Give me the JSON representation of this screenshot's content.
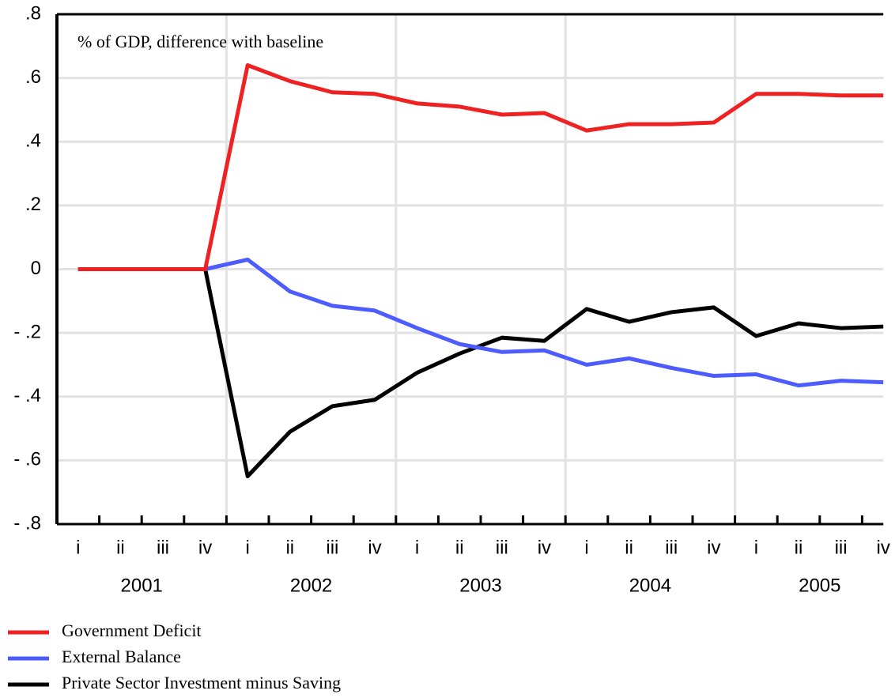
{
  "chart_data": {
    "type": "line",
    "annotation": "% of GDP, difference with baseline",
    "categories": [
      "i",
      "ii",
      "iii",
      "iv",
      "i",
      "ii",
      "iii",
      "iv",
      "i",
      "ii",
      "iii",
      "iv",
      "i",
      "ii",
      "iii",
      "iv",
      "i",
      "ii",
      "iii",
      "iv"
    ],
    "years": [
      "2001",
      "2002",
      "2003",
      "2004",
      "2005"
    ],
    "series": [
      {
        "name": "Government Deficit",
        "color": "#ee2222",
        "values": [
          0,
          0,
          0,
          0,
          0.64,
          0.59,
          0.555,
          0.55,
          0.52,
          0.51,
          0.485,
          0.49,
          0.435,
          0.455,
          0.455,
          0.46,
          0.55,
          0.55,
          0.545,
          0.545
        ]
      },
      {
        "name": "External Balance",
        "color": "#4d5cff",
        "values": [
          0,
          0,
          0,
          0,
          0.03,
          -0.07,
          -0.115,
          -0.13,
          -0.185,
          -0.235,
          -0.26,
          -0.255,
          -0.3,
          -0.28,
          -0.31,
          -0.335,
          -0.33,
          -0.365,
          -0.35,
          -0.355
        ]
      },
      {
        "name": "Private Sector Investment minus Saving",
        "color": "#000000",
        "values": [
          0,
          0,
          0,
          0,
          -0.65,
          -0.51,
          -0.43,
          -0.41,
          -0.325,
          -0.265,
          -0.215,
          -0.225,
          -0.125,
          -0.165,
          -0.135,
          -0.12,
          -0.21,
          -0.17,
          -0.185,
          -0.18
        ]
      }
    ],
    "ylim": [
      -0.8,
      0.8
    ],
    "yticks": [
      {
        "value": 0.8,
        "label": ".8"
      },
      {
        "value": 0.6,
        "label": ".6"
      },
      {
        "value": 0.4,
        "label": ".4"
      },
      {
        "value": 0.2,
        "label": ".2"
      },
      0,
      {
        "value": -0.2,
        "label": "- .2"
      },
      {
        "value": -0.4,
        "label": "- .4"
      },
      {
        "value": -0.6,
        "label": "- .6"
      },
      {
        "value": -0.8,
        "label": "- .8"
      }
    ],
    "grid": true
  }
}
